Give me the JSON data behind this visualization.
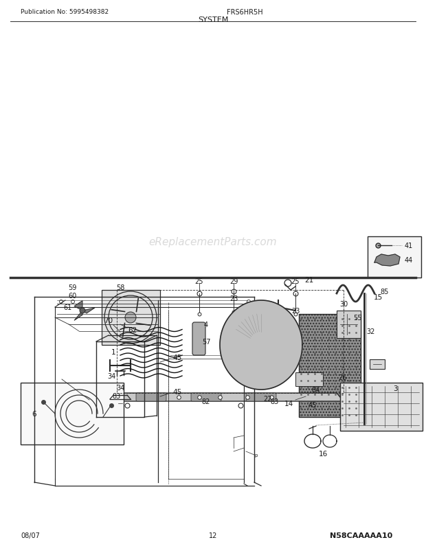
{
  "title": "SYSTEM",
  "pub_no": "Publication No: 5995498382",
  "model": "FRS6HR5H",
  "date": "08/07",
  "page": "12",
  "watermark": "eReplacementParts.com",
  "diagram_code": "N58CAAAAA10",
  "bg_color": "#ffffff",
  "text_color": "#1a1a1a",
  "line_color": "#2a2a2a"
}
